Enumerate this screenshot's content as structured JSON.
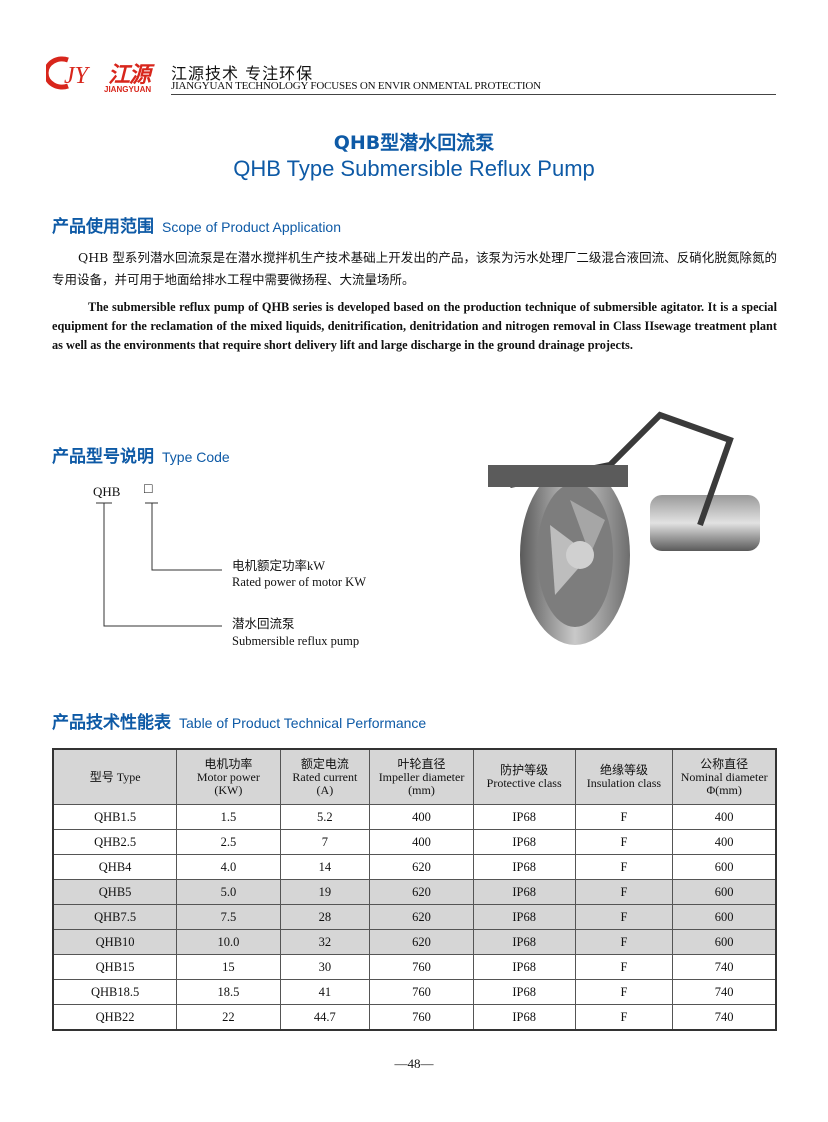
{
  "header": {
    "logo_mark": "JY",
    "logo_cn": "江源",
    "logo_en": "JIANGYUAN",
    "slogan_cn": "江源技术 专注环保",
    "slogan_en": "JIANGYUAN TECHNOLOGY FOCUSES ON ENVIR ONMENTAL PROTECTION",
    "brand_color": "#d8261c"
  },
  "title": {
    "cn": "QHB型潜水回流泵",
    "en": "QHB Type Submersible Reflux Pump",
    "color": "#0e5aa6"
  },
  "scope": {
    "heading_cn": "产品使用范围",
    "heading_en": "Scope of Product Application",
    "para_cn": "QHB 型系列潜水回流泵是在潜水搅拌机生产技术基础上开发出的产品，该泵为污水处理厂二级混合液回流、反硝化脱氮除氮的专用设备，并可用于地面给排水工程中需要微扬程、大流量场所。",
    "para_en": "The submersible reflux pump of QHB series is developed based on the production technique of submersible agitator. It is a special equipment for the reclamation of the mixed liquids, denitrification, denitridation and nitrogen removal in Class IIsewage treatment plant as well as the environments that require short delivery lift and large discharge in the ground drainage projects."
  },
  "type_code": {
    "heading_cn": "产品型号说明",
    "heading_en": "Type Code",
    "code": "QHB",
    "box": "□",
    "power_cn": "电机额定功率kW",
    "power_en": "Rated power of motor KW",
    "pump_cn": "潜水回流泵",
    "pump_en": "Submersible reflux pump"
  },
  "table": {
    "heading_cn": "产品技术性能表",
    "heading_en": "Table of Product Technical Performance",
    "columns": [
      [
        "型号 Type"
      ],
      [
        "电机功率",
        "Motor power",
        "(KW)"
      ],
      [
        "额定电流",
        "Rated current",
        "(A)"
      ],
      [
        "叶轮直径",
        "Impeller diameter",
        "(mm)"
      ],
      [
        "防护等级",
        "Protective class"
      ],
      [
        "绝缘等级",
        "Insulation class"
      ],
      [
        "公称直径",
        "Nominal diameter",
        "Φ(mm)"
      ]
    ],
    "rows": [
      [
        "QHB1.5",
        "1.5",
        "5.2",
        "400",
        "IP68",
        "F",
        "400"
      ],
      [
        "QHB2.5",
        "2.5",
        "7",
        "400",
        "IP68",
        "F",
        "400"
      ],
      [
        "QHB4",
        "4.0",
        "14",
        "620",
        "IP68",
        "F",
        "600"
      ],
      [
        "QHB5",
        "5.0",
        "19",
        "620",
        "IP68",
        "F",
        "600"
      ],
      [
        "QHB7.5",
        "7.5",
        "28",
        "620",
        "IP68",
        "F",
        "600"
      ],
      [
        "QHB10",
        "10.0",
        "32",
        "620",
        "IP68",
        "F",
        "600"
      ],
      [
        "QHB15",
        "15",
        "30",
        "760",
        "IP68",
        "F",
        "740"
      ],
      [
        "QHB18.5",
        "18.5",
        "41",
        "760",
        "IP68",
        "F",
        "740"
      ],
      [
        "QHB22",
        "22",
        "44.7",
        "760",
        "IP68",
        "F",
        "740"
      ]
    ],
    "shaded_rows": [
      3,
      4,
      5
    ]
  },
  "page_number": "—48—"
}
